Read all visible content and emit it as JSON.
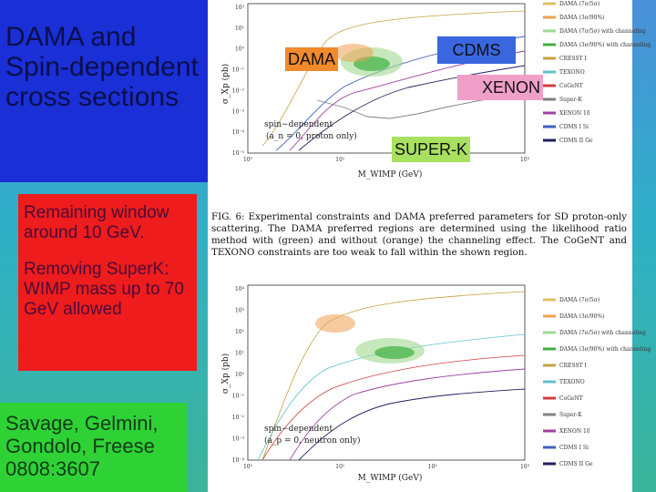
{
  "slide": {
    "title": "DAMA and Spin-dependent cross sections",
    "window_note": "Remaining window around 10 GeV.",
    "superk_note": "Removing SuperK: WIMP mass up to 70 GeV allowed",
    "reference": "Savage, Gelmini, Gondolo, Freese 0808:3607"
  },
  "overlay_labels": {
    "dama": "DAMA",
    "cdms": "CDMS",
    "xenon": "XENON",
    "superk": "SUPER-K"
  },
  "figure": {
    "caption": "FIG. 6: Experimental constraints and DAMA preferred parameters for SD proton-only scattering. The DAMA preferred regions are determined using the likelihood ratio method with (green) and without (orange) the channeling effect. The CoGeNT and TEXONO constraints are too weak to fall within the shown region.",
    "top_plot": {
      "ylabel": "σ_Xp (pb)",
      "annotation_1": "spin−dependent",
      "annotation_2": "(a_n = 0, proton only)",
      "xlabel": "M_WIMP (GeV)"
    },
    "bottom_plot": {
      "ylabel": "σ_Xp (pb)",
      "annotation_1": "spin−dependent",
      "annotation_2": "(a_p = 0, neutron only)",
      "xlabel": "M_WIMP (GeV)"
    },
    "x_ticks": [
      "10⁰",
      "10¹",
      "10²",
      "10³"
    ],
    "top_y_ticks": [
      "10²",
      "10¹",
      "10⁰",
      "10⁻¹",
      "10⁻²",
      "10⁻³",
      "10⁻⁴",
      "10⁻⁵"
    ],
    "bottom_y_ticks": [
      "10⁴",
      "10³",
      "10²",
      "10¹",
      "10⁰",
      "10⁻¹",
      "10⁻²",
      "10⁻³",
      "10⁻⁴"
    ],
    "legend": [
      {
        "label": "DAMA (7σ/5σ)",
        "color": "#e0c060"
      },
      {
        "label": "DAMA (3σ/90%)",
        "color": "#f0a050"
      },
      {
        "label": "DAMA (7σ/5σ) with channeling",
        "color": "#a0d890"
      },
      {
        "label": "DAMA (3σ/90%) with channeling",
        "color": "#40b040"
      },
      {
        "label": "CRESST I",
        "color": "#c8a040"
      },
      {
        "label": "TEXONO",
        "color": "#60c0d0"
      },
      {
        "label": "CoGeNT",
        "color": "#d04040"
      },
      {
        "label": "Super-K",
        "color": "#808080"
      },
      {
        "label": "XENON 10",
        "color": "#a040a0"
      },
      {
        "label": "CDMS I Si",
        "color": "#4060c0"
      },
      {
        "label": "CDMS II Ge",
        "color": "#202060"
      }
    ]
  }
}
